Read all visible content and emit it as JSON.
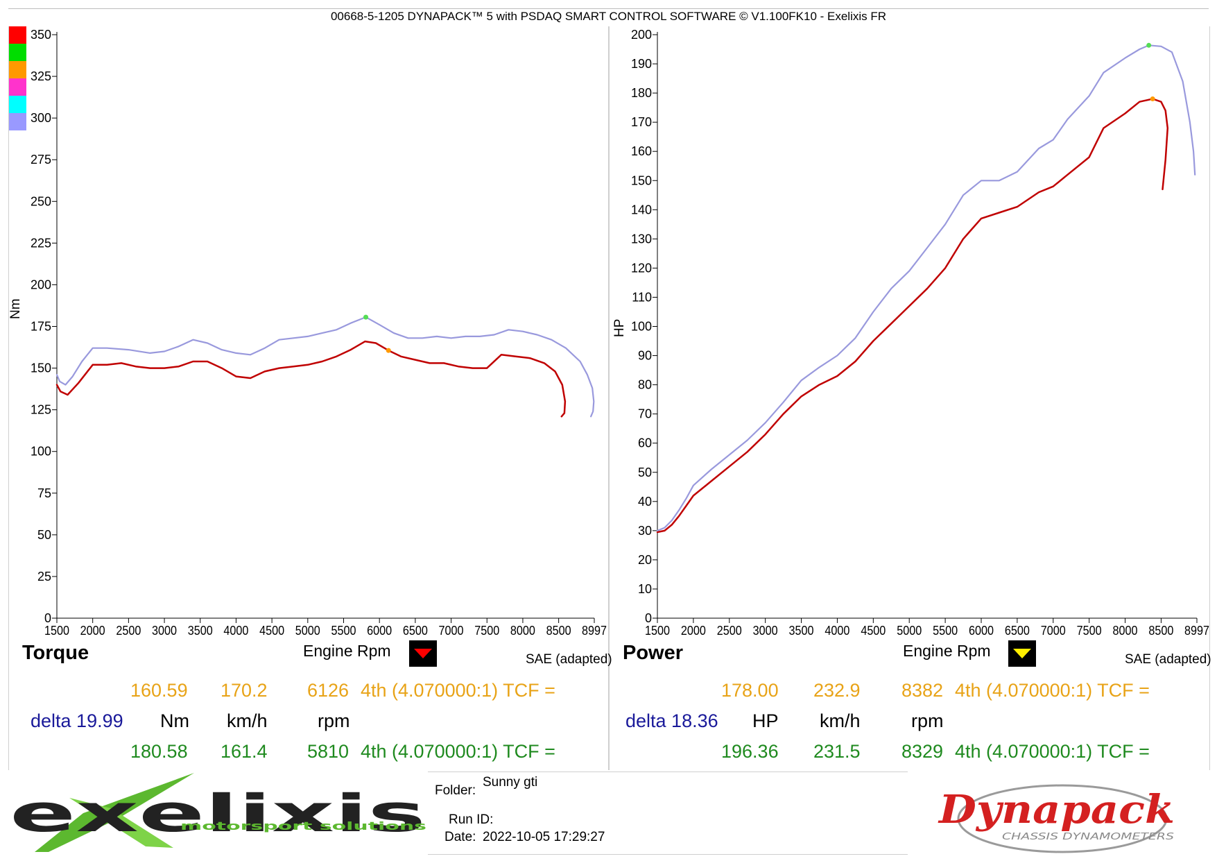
{
  "header": {
    "title": "00668-5-1205 DYNAPACK™ 5 with PSDAQ SMART CONTROL SOFTWARE © V1.100FK10 - Exelixis FR"
  },
  "colors": {
    "run_red": "#c00000",
    "run_lavender": "#9999dd",
    "swatches": [
      "#ff0000",
      "#00dd00",
      "#ff9900",
      "#ff33cc",
      "#00ffff",
      "#9999ff"
    ],
    "accent_orange": "#e8a317",
    "accent_blue": "#1a1a9a",
    "accent_green": "#1f8a1f"
  },
  "panels": [
    {
      "label": "Torque",
      "xlabel": "Engine Rpm",
      "ylabel": "Nm",
      "correction": "SAE (adapted)",
      "marker_icon": "triangle-down-red-icon",
      "row1": {
        "value": "160.59",
        "speed": "170.2",
        "rpm": "6126",
        "gear": "4th (4.070000:1) TCF ="
      },
      "units": {
        "delta": "delta 19.99",
        "value_unit": "Nm",
        "speed_unit": "km/h",
        "rpm_unit": "rpm"
      },
      "row2": {
        "value": "180.58",
        "speed": "161.4",
        "rpm": "5810",
        "gear": "4th (4.070000:1) TCF ="
      }
    },
    {
      "label": "Power",
      "xlabel": "Engine Rpm",
      "ylabel": "HP",
      "correction": "SAE (adapted)",
      "marker_icon": "triangle-down-yellow-icon",
      "row1": {
        "value": "178.00",
        "speed": "232.9",
        "rpm": "8382",
        "gear": "4th (4.070000:1) TCF ="
      },
      "units": {
        "delta": "delta 18.36",
        "value_unit": "HP",
        "speed_unit": "km/h",
        "rpm_unit": "rpm"
      },
      "row2": {
        "value": "196.36",
        "speed": "231.5",
        "rpm": "8329",
        "gear": "4th (4.070000:1) TCF ="
      }
    }
  ],
  "info": {
    "folder_label": "Folder:",
    "folder_value": "Sunny gti",
    "run_label": "Run ID:",
    "run_value": "",
    "date_label": "Date:",
    "date_value": "2022-10-05 17:29:27"
  },
  "logos": {
    "left_text": "exelixis",
    "left_tagline": "motorsport solutions",
    "right_text": "Dynapack",
    "right_tagline": "CHASSIS DYNAMOMETERS"
  },
  "chart_data": [
    {
      "type": "line",
      "xlim": [
        1500,
        8997
      ],
      "ylim": [
        0,
        350
      ],
      "xticks": [
        1500,
        2000,
        2500,
        3000,
        3500,
        4000,
        4500,
        5000,
        5500,
        6000,
        6500,
        7000,
        7500,
        8000,
        8500,
        8997
      ],
      "yticks": [
        0,
        25,
        50,
        75,
        100,
        125,
        150,
        175,
        200,
        225,
        250,
        275,
        300,
        325,
        350
      ],
      "xlabel": "Engine Rpm",
      "ylabel": "Nm",
      "grid": false,
      "series": [
        {
          "color": "#c00000",
          "x": [
            1500,
            1550,
            1650,
            1800,
            2000,
            2200,
            2400,
            2600,
            2800,
            3000,
            3200,
            3400,
            3600,
            3800,
            4000,
            4200,
            4400,
            4600,
            4800,
            5000,
            5200,
            5400,
            5600,
            5800,
            5950,
            6126,
            6300,
            6500,
            6700,
            6900,
            7100,
            7300,
            7500,
            7700,
            7900,
            8100,
            8300,
            8450,
            8550,
            8590,
            8580,
            8540
          ],
          "y": [
            140,
            136,
            134,
            141,
            152,
            152,
            153,
            151,
            150,
            150,
            151,
            154,
            154,
            150,
            145,
            144,
            148,
            150,
            151,
            152,
            154,
            157,
            161,
            166,
            165,
            160.59,
            157,
            155,
            153,
            153,
            151,
            150,
            150,
            158,
            157,
            156,
            153,
            148,
            140,
            130,
            123,
            121
          ]
        },
        {
          "color": "#9999dd",
          "x": [
            1500,
            1540,
            1620,
            1720,
            1850,
            2000,
            2200,
            2500,
            2800,
            3000,
            3200,
            3400,
            3600,
            3800,
            4000,
            4200,
            4400,
            4600,
            4800,
            5000,
            5200,
            5400,
            5600,
            5810,
            6000,
            6200,
            6400,
            6600,
            6800,
            7000,
            7200,
            7400,
            7600,
            7800,
            8000,
            8200,
            8400,
            8600,
            8800,
            8900,
            8970,
            8990,
            8980,
            8950
          ],
          "y": [
            146,
            142,
            140,
            145,
            154,
            162,
            162,
            161,
            159,
            160,
            163,
            167,
            165,
            161,
            159,
            158,
            162,
            167,
            168,
            169,
            171,
            173,
            177,
            180.58,
            176,
            171,
            168,
            168,
            169,
            168,
            169,
            169,
            170,
            173,
            172,
            170,
            167,
            162,
            154,
            146,
            138,
            130,
            124,
            121
          ]
        }
      ],
      "peaks": [
        {
          "series": 0,
          "x": 6126,
          "y": 160.59,
          "color": "#ff9900"
        },
        {
          "series": 1,
          "x": 5810,
          "y": 180.58,
          "color": "#55dd55"
        }
      ]
    },
    {
      "type": "line",
      "xlim": [
        1500,
        8997
      ],
      "ylim": [
        0,
        200
      ],
      "xticks": [
        1500,
        2000,
        2500,
        3000,
        3500,
        4000,
        4500,
        5000,
        5500,
        6000,
        6500,
        7000,
        7500,
        8000,
        8500,
        8997
      ],
      "yticks": [
        0,
        10,
        20,
        30,
        40,
        50,
        60,
        70,
        80,
        90,
        100,
        110,
        120,
        130,
        140,
        150,
        160,
        170,
        180,
        190,
        200
      ],
      "xlabel": "Engine Rpm",
      "ylabel": "HP",
      "grid": false,
      "series": [
        {
          "color": "#c00000",
          "x": [
            1500,
            1600,
            1700,
            1800,
            1900,
            2000,
            2250,
            2500,
            2750,
            3000,
            3250,
            3500,
            3750,
            4000,
            4250,
            4500,
            4750,
            5000,
            5250,
            5500,
            5750,
            6000,
            6250,
            6500,
            6800,
            7000,
            7200,
            7500,
            7700,
            8000,
            8200,
            8382,
            8500,
            8560,
            8590,
            8560,
            8520
          ],
          "y": [
            29.5,
            30,
            32,
            35,
            38.5,
            42,
            47,
            52,
            57,
            63,
            70,
            76,
            80,
            83,
            88,
            95,
            101,
            107,
            113,
            120,
            130,
            137,
            139,
            141,
            146,
            148,
            152,
            158,
            168,
            173,
            177,
            178.0,
            177,
            174,
            168,
            157,
            147
          ]
        },
        {
          "color": "#9999dd",
          "x": [
            1500,
            1600,
            1700,
            1800,
            1900,
            2000,
            2250,
            2500,
            2750,
            3000,
            3250,
            3500,
            3750,
            4000,
            4250,
            4500,
            4750,
            5000,
            5250,
            5500,
            5750,
            6000,
            6250,
            6500,
            6800,
            7000,
            7200,
            7500,
            7700,
            8000,
            8200,
            8329,
            8500,
            8650,
            8800,
            8900,
            8950,
            8970
          ],
          "y": [
            30,
            31,
            33.5,
            37,
            41,
            45.5,
            51,
            56,
            61,
            67,
            74,
            81.5,
            86,
            90,
            96,
            105,
            113,
            119,
            127,
            135,
            145,
            150,
            150,
            153,
            161,
            164,
            171,
            179,
            187,
            192,
            195,
            196.36,
            196,
            194,
            184,
            170,
            160,
            152
          ]
        }
      ],
      "peaks": [
        {
          "series": 0,
          "x": 8382,
          "y": 178.0,
          "color": "#ff9900"
        },
        {
          "series": 1,
          "x": 8329,
          "y": 196.36,
          "color": "#55dd55"
        }
      ]
    }
  ]
}
